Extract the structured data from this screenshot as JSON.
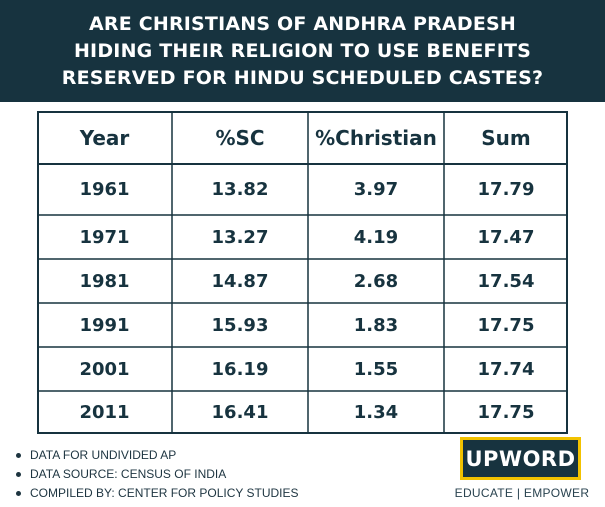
{
  "header": {
    "title_lines": [
      "ARE CHRISTIANS OF ANDHRA PRADESH",
      "HIDING THEIR RELIGION TO USE BENEFITS",
      "RESERVED FOR HINDU SCHEDULED CASTES?"
    ]
  },
  "chart_data": {
    "type": "table",
    "columns": [
      "Year",
      "%SC",
      "%Christian",
      "Sum"
    ],
    "rows": [
      [
        "1961",
        "13.82",
        "3.97",
        "17.79"
      ],
      [
        "1971",
        "13.27",
        "4.19",
        "17.47"
      ],
      [
        "1981",
        "14.87",
        "2.68",
        "17.54"
      ],
      [
        "1991",
        "15.93",
        "1.83",
        "17.75"
      ],
      [
        "2001",
        "16.19",
        "1.55",
        "17.74"
      ],
      [
        "2011",
        "16.41",
        "1.34",
        "17.75"
      ]
    ]
  },
  "notes": [
    "DATA FOR UNDIVIDED AP",
    "DATA SOURCE: CENSUS OF INDIA",
    "COMPILED BY: CENTER FOR POLICY STUDIES"
  ],
  "brand": {
    "logo": "UPWORD",
    "tagline": "EDUCATE | EMPOWER",
    "colors": {
      "navy": "#17333f",
      "yellow": "#f2c200"
    }
  }
}
